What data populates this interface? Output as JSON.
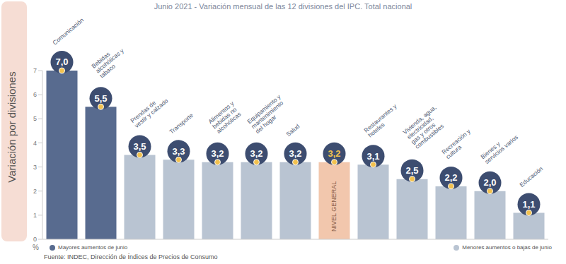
{
  "chart_data": {
    "type": "bar",
    "title": "Junio 2021 - Variación mensual de las 12 divisiones del IPC. Total nacional",
    "y_label": "Variación por divisiones",
    "y_unit": "%",
    "source": "Fuente: INDEC, Dirección de Índices de Precios de Consumo",
    "categories": [
      "Comunicación",
      "Bebidas alcohólicas y tabaco",
      "Prendas de vestir y calzado",
      "Transporte",
      "Alimentos y bebidas no alcohólicas",
      "Equipamiento y mantenimiento del hogar",
      "Salud",
      "NIVEL GENERAL",
      "Restaurantes y hoteles",
      "Vivienda, agua, electricidad, gas y otros combustibles",
      "Recreación y cultura",
      "Bienes y servicios varios",
      "Educación"
    ],
    "values": [
      7.0,
      5.5,
      3.5,
      3.3,
      3.2,
      3.2,
      3.2,
      3.2,
      3.1,
      2.5,
      2.2,
      2.0,
      1.1
    ],
    "value_labels": [
      "7,0",
      "5,5",
      "3,5",
      "3,3",
      "3,2",
      "3,2",
      "3,2",
      "3,2",
      "3,1",
      "2,5",
      "2,2",
      "2,0",
      "1,1"
    ],
    "colors": [
      "#586b8f",
      "#586b8f",
      "#b9c4d2",
      "#b9c4d2",
      "#b9c4d2",
      "#b9c4d2",
      "#b9c4d2",
      "#f2c7ad",
      "#b9c4d2",
      "#b9c4d2",
      "#b9c4d2",
      "#b9c4d2",
      "#b9c4d2"
    ],
    "legend_entries": [
      {
        "name": "Mayores aumentos de junio",
        "color": "#586b8f"
      },
      {
        "name": "Menores aumentos o bajas de junio",
        "color": "#b9c4d2"
      }
    ],
    "ylim": [
      0,
      7
    ],
    "yticks": [
      0,
      1,
      2,
      3,
      4,
      5,
      6,
      7
    ],
    "grid": false,
    "data_labels": true,
    "tick_labels": "y"
  }
}
